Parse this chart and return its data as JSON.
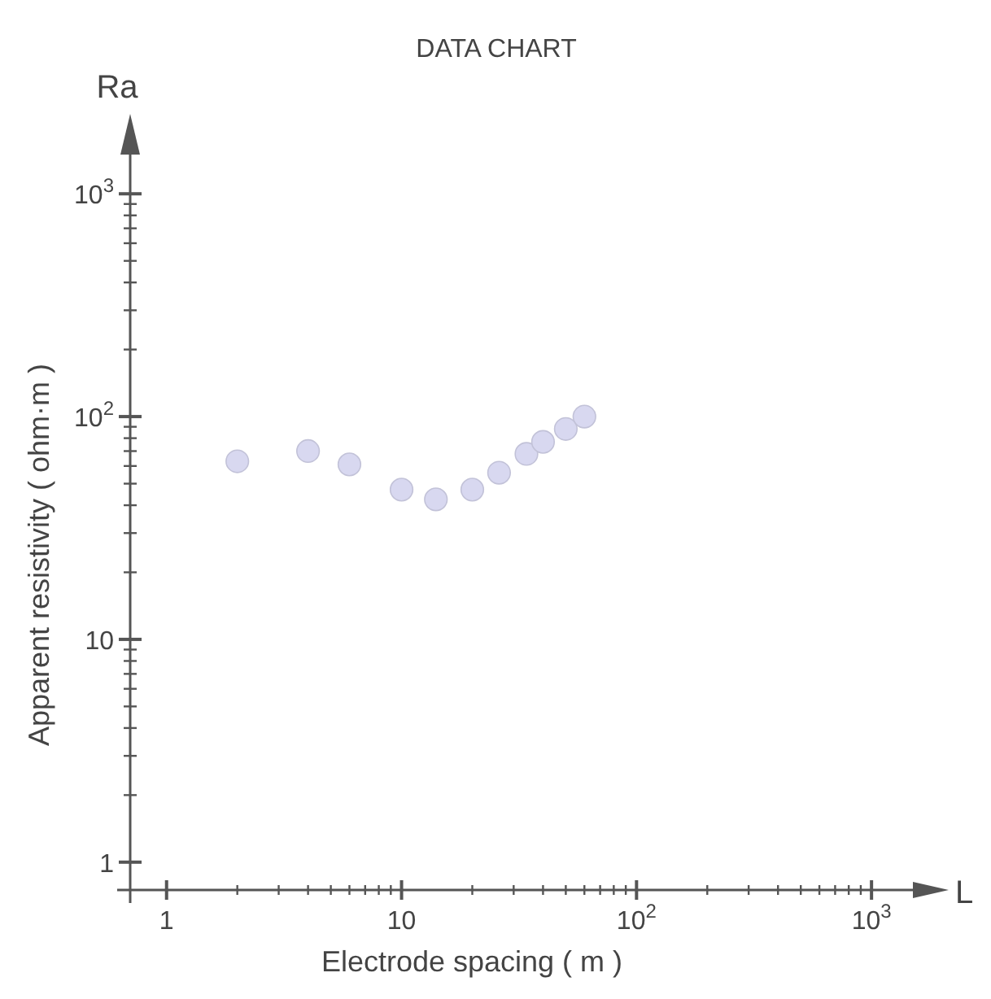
{
  "chart_data": {
    "type": "scatter",
    "title": "DATA CHART",
    "xlabel": "Electrode spacing  ( m )",
    "ylabel": "Apparent resistivity  ( ohm·m )",
    "annotations": [
      "Ra",
      "L"
    ],
    "x": [
      2,
      4,
      6,
      10,
      14,
      20,
      26,
      34,
      40,
      50,
      60
    ],
    "series": [
      {
        "color": "#d8d8f0",
        "values": [
          63,
          70,
          61,
          47,
          42.5,
          47,
          56,
          68,
          77,
          88,
          100
        ]
      }
    ],
    "log": "xy",
    "marker": "circle",
    "grid": false,
    "xlim": [
      0.7,
      1500
    ],
    "ylim": [
      0.75,
      1500
    ],
    "xticks": [
      1,
      {
        "value": 2,
        "label": null
      },
      {
        "value": 3,
        "label": null
      },
      {
        "value": 4,
        "label": null
      },
      {
        "value": 5,
        "label": null
      },
      {
        "value": 6,
        "label": null
      },
      {
        "value": 7,
        "label": null
      },
      {
        "value": 8,
        "label": null
      },
      {
        "value": 9,
        "label": null
      },
      10,
      {
        "value": 20,
        "label": null
      },
      {
        "value": 30,
        "label": null
      },
      {
        "value": 40,
        "label": null
      },
      {
        "value": 50,
        "label": null
      },
      {
        "value": 60,
        "label": null
      },
      {
        "value": 70,
        "label": null
      },
      {
        "value": 80,
        "label": null
      },
      {
        "value": 90,
        "label": null
      },
      {
        "value": 100,
        "label": "10$^{2}$"
      },
      {
        "value": 200,
        "label": null
      },
      {
        "value": 300,
        "label": null
      },
      {
        "value": 400,
        "label": null
      },
      {
        "value": 500,
        "label": null
      },
      {
        "value": 600,
        "label": null
      },
      {
        "value": 700,
        "label": null
      },
      {
        "value": 800,
        "label": null
      },
      {
        "value": 900,
        "label": null
      },
      {
        "value": 1000,
        "label": "10$^{3}$"
      }
    ],
    "yticks": [
      1,
      {
        "value": 2,
        "label": null
      },
      {
        "value": 3,
        "label": null
      },
      {
        "value": 4,
        "label": null
      },
      {
        "value": 5,
        "label": null
      },
      {
        "value": 6,
        "label": null
      },
      {
        "value": 7,
        "label": null
      },
      {
        "value": 8,
        "label": null
      },
      {
        "value": 9,
        "label": null
      },
      10,
      {
        "value": 20,
        "label": null
      },
      {
        "value": 30,
        "label": null
      },
      {
        "value": 40,
        "label": null
      },
      {
        "value": 50,
        "label": null
      },
      {
        "value": 60,
        "label": null
      },
      {
        "value": 70,
        "label": null
      },
      {
        "value": 80,
        "label": null
      },
      {
        "value": 90,
        "label": null
      },
      {
        "value": 100,
        "label": "10$^{2}$"
      },
      {
        "value": 200,
        "label": null
      },
      {
        "value": 300,
        "label": null
      },
      {
        "value": 400,
        "label": null
      },
      {
        "value": 500,
        "label": null
      },
      {
        "value": 600,
        "label": null
      },
      {
        "value": 700,
        "label": null
      },
      {
        "value": 800,
        "label": null
      },
      {
        "value": 900,
        "label": null
      },
      {
        "value": 1000,
        "label": "10$^{3}$"
      }
    ]
  }
}
